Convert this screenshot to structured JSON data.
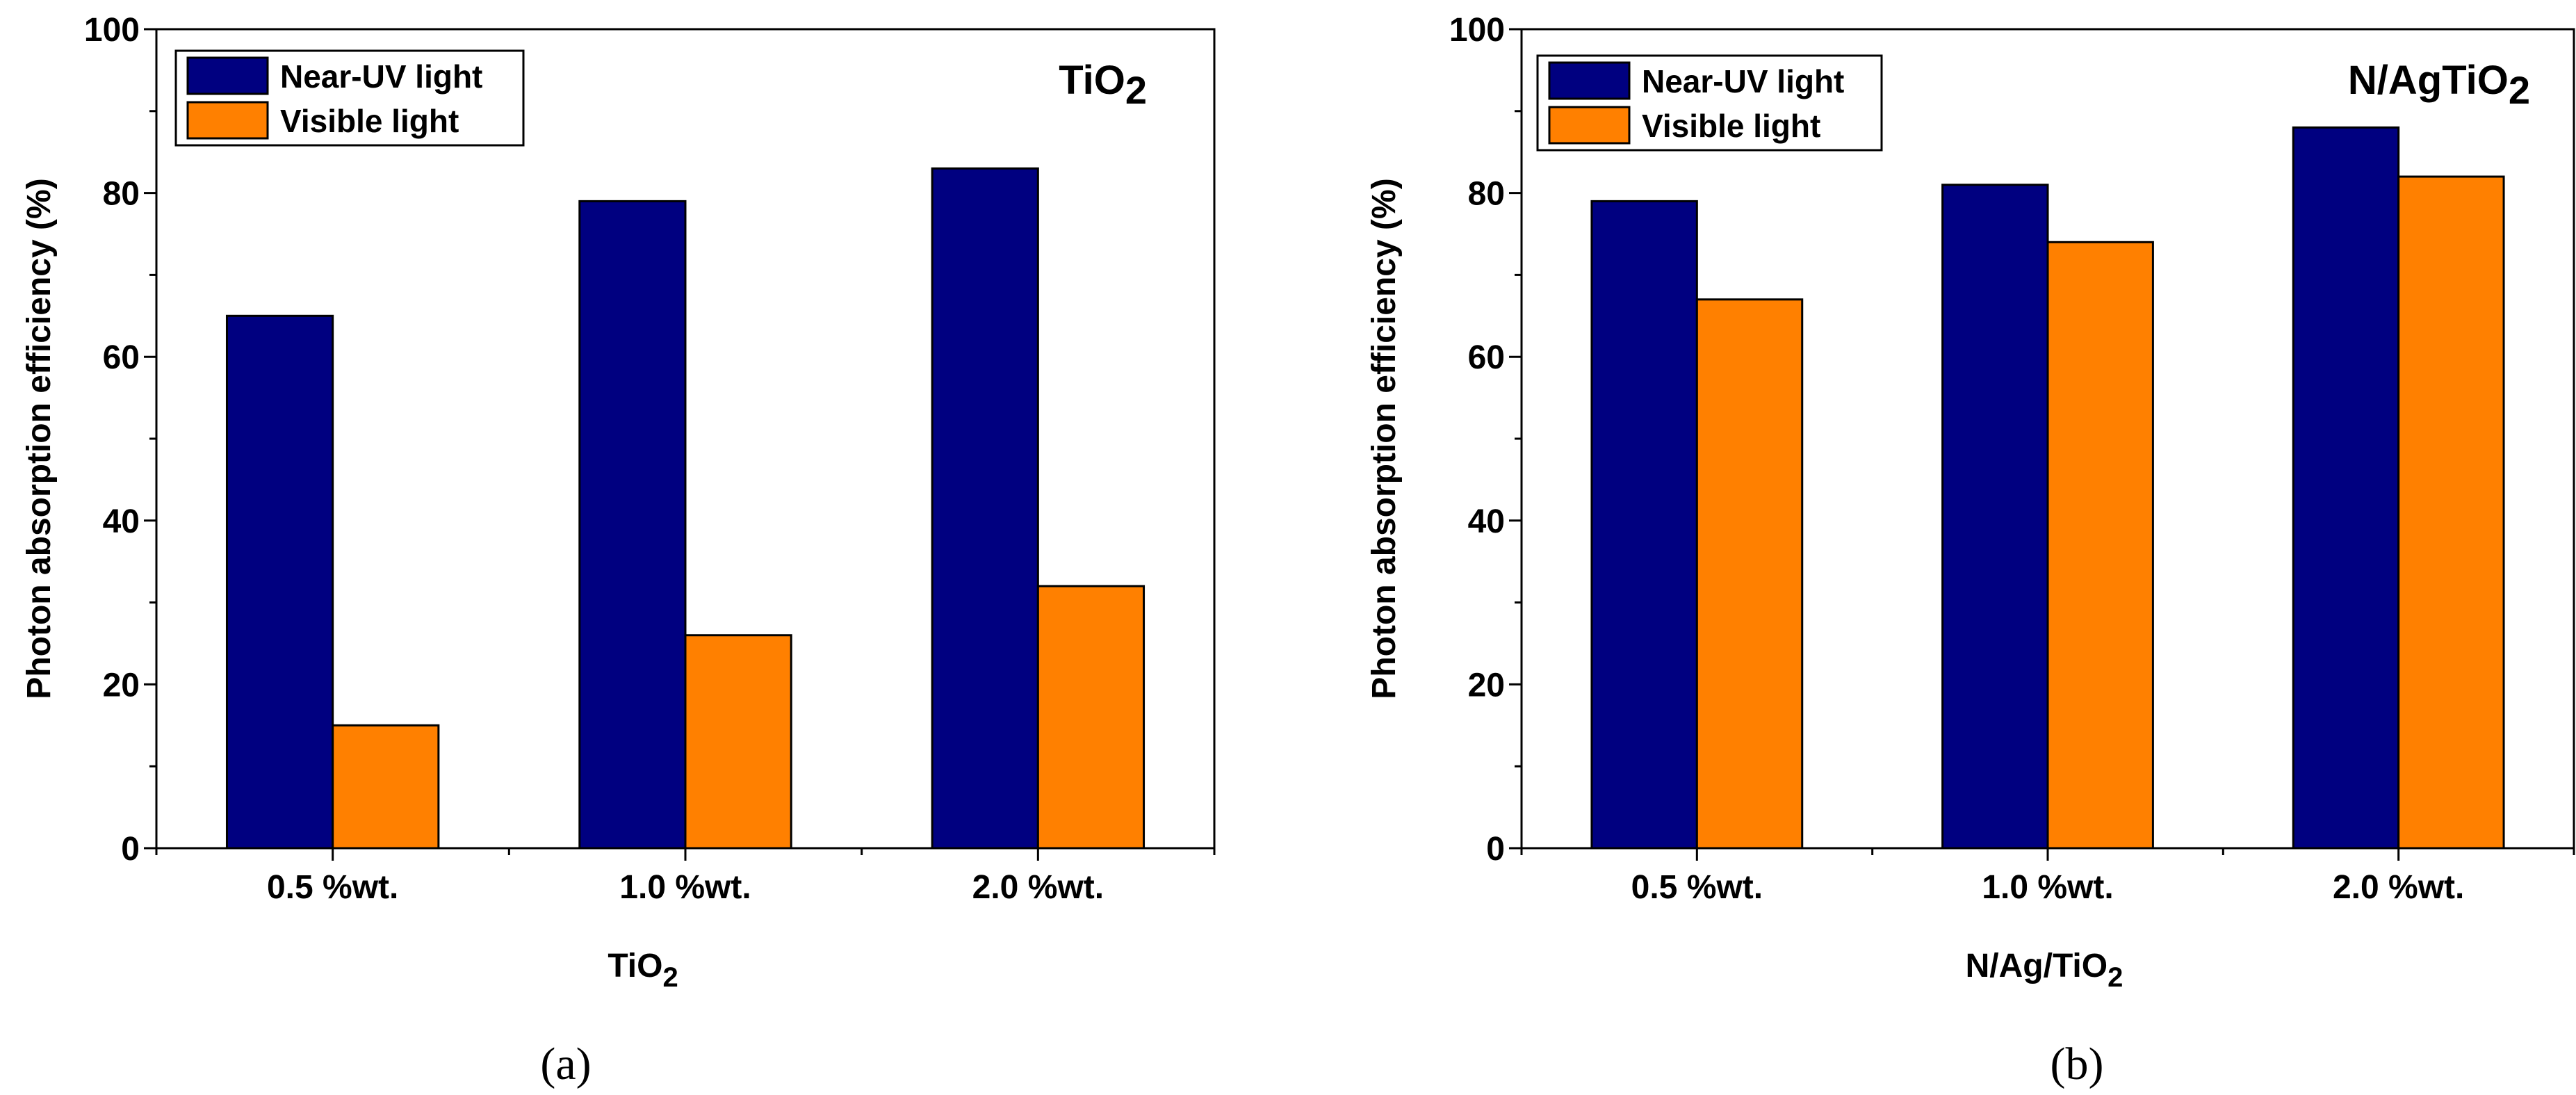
{
  "colors": {
    "near_uv": "#000080",
    "visible": "#FF8000"
  },
  "chart_data": [
    {
      "type": "bar",
      "panel_label": "(a)",
      "title": {
        "main": "TiO",
        "sub": "2"
      },
      "xlabel": {
        "main": "TiO",
        "sub": "2"
      },
      "ylabel": "Photon absorption efficiency (%)",
      "ylim": [
        0,
        100
      ],
      "yticks": [
        "0",
        "20",
        "40",
        "60",
        "80",
        "100"
      ],
      "categories": [
        "0.5 %wt.",
        "1.0 %wt.",
        "2.0 %wt."
      ],
      "legend_position": "top-left",
      "series": [
        {
          "name": "Near-UV light",
          "values": [
            65,
            79,
            83
          ]
        },
        {
          "name": "Visible light",
          "values": [
            15,
            26,
            32
          ]
        }
      ]
    },
    {
      "type": "bar",
      "panel_label": "(b)",
      "title": {
        "main": "N/AgTiO",
        "sub": "2"
      },
      "xlabel": {
        "main": "N/Ag/TiO",
        "sub": "2"
      },
      "ylabel": "Photon absorption efficiency (%)",
      "ylim": [
        0,
        100
      ],
      "yticks": [
        "0",
        "20",
        "40",
        "60",
        "80",
        "100"
      ],
      "categories": [
        "0.5 %wt.",
        "1.0 %wt.",
        "2.0 %wt."
      ],
      "legend_position": "top-left",
      "series": [
        {
          "name": "Near-UV light",
          "values": [
            79,
            81,
            88
          ]
        },
        {
          "name": "Visible light",
          "values": [
            67,
            74,
            82
          ]
        }
      ]
    }
  ]
}
